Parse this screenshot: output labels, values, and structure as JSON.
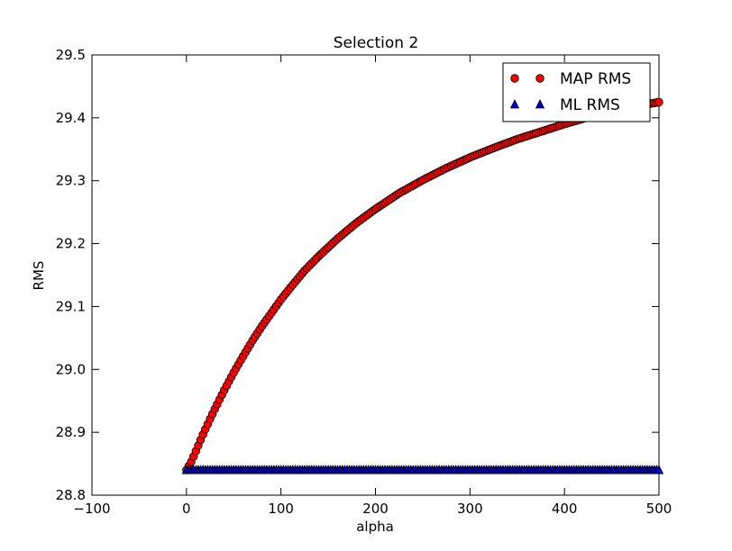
{
  "chart_data": {
    "type": "scatter",
    "title": "Selection 2",
    "xlabel": "alpha",
    "ylabel": "RMS",
    "xlim": [
      -100,
      500
    ],
    "ylim": [
      28.8,
      29.5
    ],
    "xticks": [
      -100,
      0,
      100,
      200,
      300,
      400,
      500
    ],
    "xtick_labels": [
      "−100",
      "0",
      "100",
      "200",
      "300",
      "400",
      "500"
    ],
    "yticks": [
      28.8,
      28.9,
      29.0,
      29.1,
      29.2,
      29.3,
      29.4,
      29.5
    ],
    "ytick_labels": [
      "28.8",
      "28.9",
      "29.0",
      "29.1",
      "29.2",
      "29.3",
      "29.4",
      "29.5"
    ],
    "grid": false,
    "legend_position": "top-right",
    "series": [
      {
        "name": "MAP RMS",
        "marker": "circle",
        "color": "#ff0000",
        "x": [
          0,
          5,
          10,
          15,
          20,
          25,
          30,
          40,
          50,
          60,
          70,
          80,
          90,
          100,
          110,
          125,
          140,
          160,
          180,
          200,
          225,
          250,
          275,
          300,
          325,
          350,
          375,
          400,
          425,
          450,
          475,
          500
        ],
        "y": [
          28.84,
          28.853,
          28.87,
          28.888,
          28.905,
          28.921,
          28.937,
          28.967,
          28.995,
          29.021,
          29.046,
          29.069,
          29.09,
          29.111,
          29.13,
          29.157,
          29.18,
          29.208,
          29.233,
          29.255,
          29.28,
          29.301,
          29.32,
          29.337,
          29.352,
          29.366,
          29.378,
          29.39,
          29.401,
          29.41,
          29.418,
          29.425
        ]
      },
      {
        "name": "ML RMS",
        "marker": "triangle",
        "color": "#0000cc",
        "x": [
          0,
          500
        ],
        "y": [
          28.84,
          28.84
        ]
      }
    ]
  }
}
